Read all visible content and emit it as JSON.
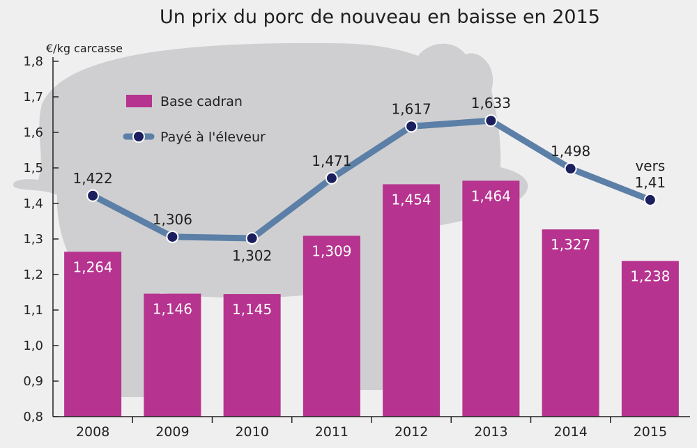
{
  "colors": {
    "background": "#efeff0",
    "bar": "#b6338f",
    "line": "#5b7fa6",
    "marker": "#1c1f5e",
    "pig": "#cfcfd1",
    "axis": "#222222"
  },
  "chart_data": {
    "type": "bar",
    "title": "Un prix du porc de nouveau en baisse en 2015",
    "ylabel": "€/kg carcasse",
    "xlabel": "",
    "ylim": [
      0.8,
      1.8
    ],
    "yticks": [
      0.8,
      0.9,
      1.0,
      1.1,
      1.2,
      1.3,
      1.4,
      1.5,
      1.6,
      1.7,
      1.8
    ],
    "ytick_labels": [
      "0,8",
      "0,9",
      "1,0",
      "1,1",
      "1,2",
      "1,3",
      "1,4",
      "1,5",
      "1,6",
      "1,7",
      "1,8"
    ],
    "categories": [
      "2008",
      "2009",
      "2010",
      "2011",
      "2012",
      "2013",
      "2014",
      "2015"
    ],
    "grid": false,
    "legend_position": "top-left",
    "series": [
      {
        "name": "Base cadran",
        "type": "bar",
        "values": [
          1.264,
          1.146,
          1.145,
          1.309,
          1.454,
          1.464,
          1.327,
          1.238
        ],
        "labels": [
          "1,264",
          "1,146",
          "1,145",
          "1,309",
          "1,454",
          "1,464",
          "1,327",
          "1,238"
        ]
      },
      {
        "name": "Payé à l'éleveur",
        "type": "line",
        "values": [
          1.422,
          1.306,
          1.302,
          1.471,
          1.617,
          1.633,
          1.498,
          1.41
        ],
        "labels": [
          "1,422",
          "1,306",
          "1,302",
          "1,471",
          "1,617",
          "1,633",
          "1,498",
          "1,41"
        ],
        "label_prefix_last": "vers"
      }
    ]
  }
}
